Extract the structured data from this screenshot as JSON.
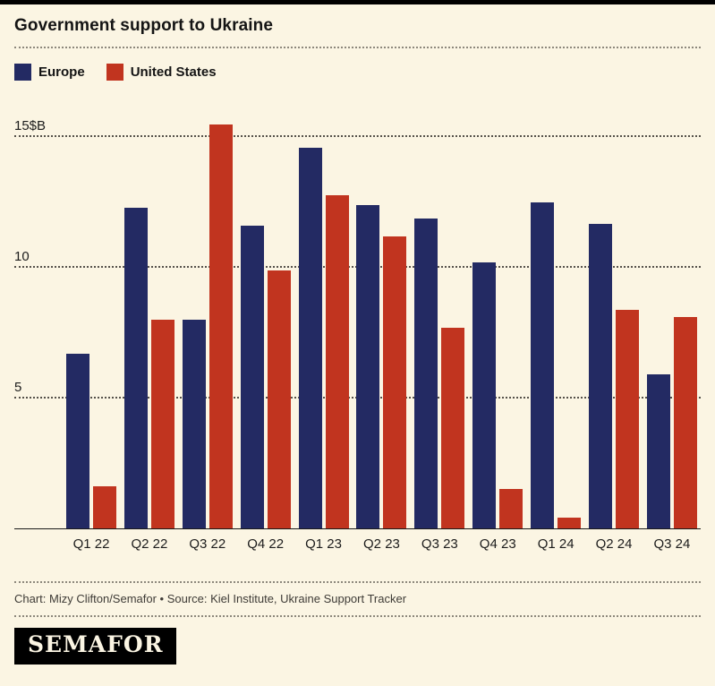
{
  "page": {
    "title": "Government support to Ukraine",
    "credit": "Chart: Mizy Clifton/Semafor • Source: Kiel Institute, Ukraine Support Tracker",
    "logo_text": "SEMAFOR"
  },
  "colors": {
    "background": "#fbf5e3",
    "europe": "#232a63",
    "united_states": "#c1341f",
    "gridline": "#55514a"
  },
  "chart_data": {
    "type": "bar",
    "title": "Government support to Ukraine",
    "unit": "$B",
    "categories": [
      "Q1 22",
      "Q2 22",
      "Q3 22",
      "Q4 22",
      "Q1 23",
      "Q2 23",
      "Q3 23",
      "Q4 23",
      "Q1 24",
      "Q2 24",
      "Q3 24"
    ],
    "series": [
      {
        "name": "Europe",
        "color": "#232a63",
        "values": [
          6.7,
          12.3,
          8.0,
          11.6,
          14.6,
          12.4,
          11.9,
          10.2,
          12.5,
          11.7,
          5.9
        ]
      },
      {
        "name": "United States",
        "color": "#c1341f",
        "values": [
          1.6,
          8.0,
          15.5,
          9.9,
          12.8,
          11.2,
          7.7,
          1.5,
          0.4,
          8.4,
          8.1
        ]
      }
    ],
    "yticks": [
      {
        "value": 5,
        "label": "5"
      },
      {
        "value": 10,
        "label": "10"
      },
      {
        "value": 15,
        "label": "15$B"
      }
    ],
    "ylim": [
      0,
      16.7
    ],
    "xlabel": "",
    "ylabel": "",
    "grid": "dotted-horizontal",
    "legend_position": "top-left"
  }
}
